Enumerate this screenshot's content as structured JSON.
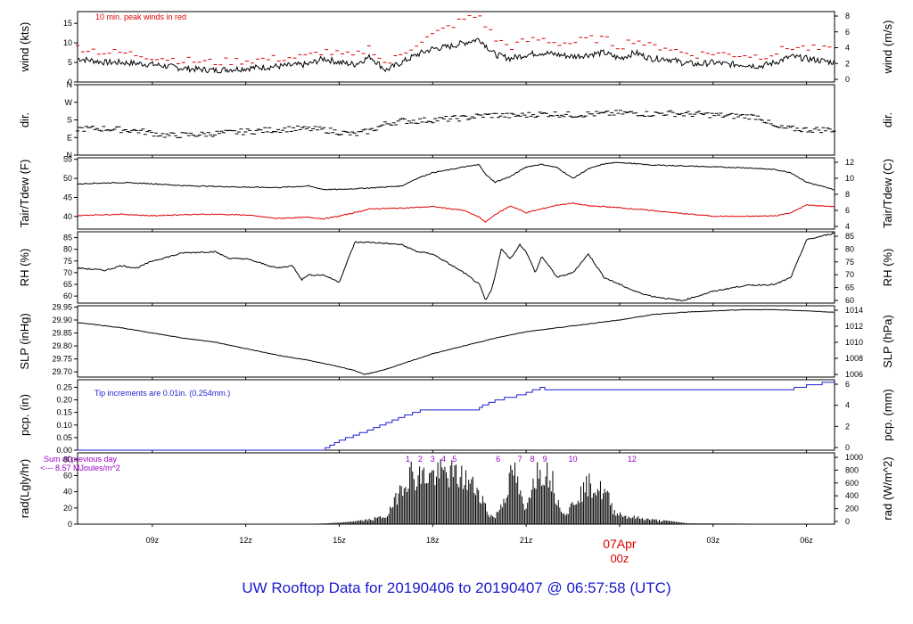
{
  "footer": {
    "title": "UW Rooftop Data for 20190406  to  20190407 @ 06:57:58  (UTC)"
  },
  "colors": {
    "axis": "#000000",
    "wind_peak": "#dd0000",
    "tdew": "#dd0000",
    "pcp": "#1f1fd0",
    "rad_hours": "#9900cc",
    "date_label": "#dd0000",
    "title": "#1a1acc"
  },
  "chart_data": [
    {
      "type": "line",
      "panel": "wind",
      "ylabel": "wind (kts)",
      "ylabel_right": "wind (m/s)",
      "ylim": [
        0,
        18
      ],
      "yticks": [
        0,
        5,
        10,
        15
      ],
      "yticks_right": [
        "0",
        "2",
        "4",
        "6",
        "8"
      ],
      "annotation": "10 min. peak winds in red",
      "series": [
        {
          "name": "wind",
          "color": "#000000",
          "style": "line",
          "x": [
            6.6,
            7.5,
            8,
            9,
            10,
            11,
            12,
            13,
            14,
            14.5,
            15,
            15.5,
            16,
            16.5,
            17,
            17.5,
            18,
            18.5,
            19,
            19.5,
            20,
            20.5,
            21,
            21.5,
            22,
            22.5,
            23,
            23.5,
            24,
            24.5,
            25,
            25.5,
            26,
            26.5,
            27,
            27.5,
            28,
            28.5,
            29,
            29.5,
            30.9
          ],
          "y": [
            6,
            5,
            5,
            4.5,
            3.5,
            3,
            3.5,
            4,
            4.5,
            6,
            5,
            4.5,
            6.5,
            3,
            5,
            7,
            8.5,
            9,
            10,
            11,
            7,
            6,
            7,
            7.5,
            7,
            6.5,
            7,
            7.5,
            6,
            7.5,
            6,
            6,
            5,
            4.5,
            5,
            4.5,
            4.5,
            4,
            5,
            6.5,
            5
          ]
        },
        {
          "name": "10 min. peak winds",
          "color": "#dd0000",
          "style": "dash",
          "x": [
            6.6,
            7.5,
            8,
            9,
            10,
            11,
            12,
            13,
            14,
            14.5,
            15,
            15.5,
            16,
            16.5,
            17,
            17.5,
            18,
            18.5,
            19,
            19.5,
            20,
            20.5,
            21,
            21.5,
            22,
            22.5,
            23,
            23.5,
            24,
            24.5,
            25,
            25.5,
            26,
            26.5,
            27,
            27.5,
            28,
            28.5,
            29,
            29.5,
            30.9
          ],
          "y": [
            9,
            7.5,
            7.5,
            6.5,
            5.5,
            5,
            5.5,
            6,
            6.5,
            8,
            7,
            6.5,
            9,
            4.5,
            7,
            10,
            12,
            14,
            16,
            17,
            11,
            9,
            10.5,
            11,
            10,
            10,
            11,
            11,
            9,
            11,
            9,
            9,
            7.5,
            7,
            7.5,
            7,
            7,
            6.5,
            7.5,
            9,
            8
          ]
        }
      ]
    },
    {
      "type": "scatter",
      "panel": "dir",
      "ylabel": "dir.",
      "ylabel_right": "dir.",
      "ylim": [
        0,
        360
      ],
      "yticks": [
        0,
        90,
        180,
        270,
        360
      ],
      "yticklabels": [
        "N",
        "E",
        "S",
        "W",
        "N"
      ],
      "series": [
        {
          "name": "dir",
          "color": "#000000",
          "x": [
            6.6,
            7.5,
            8.5,
            9.5,
            10.5,
            11.5,
            12.5,
            13.5,
            14.5,
            15.5,
            16,
            16.5,
            17,
            17.5,
            18,
            18.5,
            19,
            19.5,
            20,
            20.5,
            21,
            21.5,
            22,
            22.5,
            23,
            23.5,
            24,
            24.5,
            25,
            25.5,
            26,
            26.5,
            27,
            27.5,
            28,
            28.5,
            29,
            29.5,
            30,
            30.9
          ],
          "y": [
            135,
            135,
            125,
            100,
            105,
            115,
            125,
            135,
            130,
            105,
            125,
            160,
            175,
            175,
            180,
            185,
            190,
            200,
            205,
            200,
            205,
            210,
            210,
            205,
            210,
            210,
            215,
            215,
            210,
            215,
            210,
            210,
            205,
            200,
            200,
            195,
            140,
            135,
            130,
            130
          ]
        }
      ]
    },
    {
      "type": "line",
      "panel": "tair_tdew",
      "ylabel": "Tair/Tdew (F)",
      "ylabel_right": "Tair/Tdew (C)",
      "ylim": [
        36.7,
        55.4
      ],
      "yticks": [
        40,
        45,
        50,
        55
      ],
      "yticks_right": [
        "4",
        "6",
        "8",
        "10",
        "12"
      ],
      "series": [
        {
          "name": "Tair",
          "color": "#000000",
          "x": [
            6.6,
            7,
            8,
            9,
            10,
            11,
            12,
            13,
            14,
            14.5,
            15,
            16,
            17,
            17.5,
            18,
            18.5,
            19,
            19.5,
            19.7,
            20,
            20.5,
            21,
            21.5,
            22,
            22.5,
            23,
            23.5,
            24,
            25,
            26,
            27,
            28,
            29,
            29.5,
            30,
            30.9
          ],
          "y": [
            48.5,
            48.7,
            48.9,
            48.6,
            48.1,
            47.9,
            47.7,
            47.6,
            48.0,
            47.1,
            47.1,
            47.5,
            48.0,
            50.0,
            51.5,
            52.2,
            53.0,
            53.6,
            51.0,
            49.0,
            50.5,
            53.0,
            53.7,
            52.8,
            50.0,
            52.5,
            53.8,
            54.2,
            53.5,
            53.3,
            53.0,
            52.8,
            52.3,
            51.5,
            49.0,
            47.0
          ]
        },
        {
          "name": "Tdew",
          "color": "#dd0000",
          "x": [
            6.6,
            7,
            8,
            9,
            10,
            11,
            12,
            13,
            14,
            14.5,
            15,
            16,
            17,
            17.5,
            18,
            18.5,
            19,
            19.5,
            19.7,
            20,
            20.5,
            21,
            21.5,
            22,
            22.5,
            23,
            23.5,
            24,
            25,
            26,
            27,
            28,
            29,
            29.5,
            30,
            30.9
          ],
          "y": [
            40.2,
            40.4,
            40.6,
            40.2,
            40.5,
            40.6,
            40.4,
            39.5,
            39.8,
            39.4,
            40.1,
            42.0,
            42.2,
            42.4,
            42.6,
            42.1,
            41.6,
            39.8,
            38.5,
            40.5,
            42.8,
            41.0,
            42.0,
            43.0,
            43.5,
            42.8,
            42.6,
            42.3,
            41.6,
            40.8,
            40.1,
            40.0,
            40.2,
            41.0,
            43.0,
            42.6
          ]
        }
      ]
    },
    {
      "type": "line",
      "panel": "rh",
      "ylabel": "RH (%)",
      "ylabel_right": "RH (%)",
      "ylim": [
        57,
        87.5
      ],
      "yticks": [
        60,
        65,
        70,
        75,
        80,
        85
      ],
      "yticks_right": [
        "60",
        "65",
        "70",
        "75",
        "80",
        "85"
      ],
      "series": [
        {
          "name": "RH",
          "color": "#000000",
          "x": [
            6.6,
            7.5,
            8,
            8.5,
            9,
            10,
            11,
            11.5,
            12,
            12.5,
            13,
            13.5,
            13.8,
            14,
            14.5,
            15,
            15.5,
            16,
            17,
            17.5,
            18,
            18.5,
            19,
            19.5,
            19.7,
            19.9,
            20.2,
            20.5,
            20.8,
            21,
            21.3,
            21.5,
            22,
            22.5,
            23,
            23.5,
            24,
            24.5,
            25,
            26,
            27,
            28,
            29,
            29.5,
            30,
            30.9
          ],
          "y": [
            72,
            71,
            73,
            72,
            75,
            78.5,
            79,
            76,
            76,
            74,
            72,
            73,
            67,
            69,
            69,
            66,
            83,
            83,
            82,
            79,
            78,
            74,
            70,
            65,
            58,
            63,
            80,
            76,
            82,
            79,
            70,
            77,
            68,
            70,
            78,
            68,
            65,
            62,
            60,
            58,
            62,
            64.5,
            65,
            68,
            84,
            87
          ]
        }
      ]
    },
    {
      "type": "line",
      "panel": "slp",
      "ylabel": "SLP (inHg)",
      "ylabel_right": "SLP (hPa)",
      "ylim": [
        29.68,
        29.955
      ],
      "yticks": [
        29.7,
        29.75,
        29.8,
        29.85,
        29.9,
        29.95
      ],
      "yticklabels": [
        "29.70",
        "29.75",
        "29.80",
        "29.85",
        "29.90",
        "29.95"
      ],
      "yticks_right": [
        "1006",
        "1008",
        "1010",
        "1012",
        "1014"
      ],
      "series": [
        {
          "name": "SLP",
          "color": "#000000",
          "x": [
            6.6,
            7,
            8,
            9,
            10,
            11,
            12,
            13,
            14,
            15,
            15.5,
            15.8,
            16,
            16.5,
            17,
            18,
            19,
            20,
            21,
            22,
            23,
            24,
            25,
            26,
            27,
            28,
            29,
            30,
            30.9
          ],
          "y": [
            29.89,
            29.885,
            29.87,
            29.85,
            29.83,
            29.815,
            29.79,
            29.765,
            29.745,
            29.72,
            29.705,
            29.69,
            29.695,
            29.71,
            29.73,
            29.77,
            29.8,
            29.83,
            29.855,
            29.87,
            29.885,
            29.9,
            29.92,
            29.93,
            29.935,
            29.94,
            29.94,
            29.935,
            29.93
          ]
        }
      ]
    },
    {
      "type": "line",
      "panel": "pcp",
      "ylabel": "pcp. (in)",
      "ylabel_right": "pcp. (mm)",
      "ylim": [
        0,
        0.28
      ],
      "yticks": [
        0,
        0.05,
        0.1,
        0.15,
        0.2,
        0.25
      ],
      "yticklabels": [
        "0.00",
        "0.05",
        "0.10",
        "0.15",
        "0.20",
        "0.25"
      ],
      "yticks_right": [
        "0",
        "2",
        "4",
        "6"
      ],
      "annotation": "Tip increments are 0.01in. (0.254mm.)",
      "series": [
        {
          "name": "pcp",
          "color": "#1f1fd0",
          "style": "step",
          "x": [
            6.6,
            14.4,
            14.55,
            14.7,
            14.85,
            15.0,
            15.2,
            15.45,
            15.65,
            15.9,
            16.1,
            16.3,
            16.5,
            16.7,
            16.9,
            17.1,
            17.35,
            17.6,
            19.5,
            19.6,
            19.8,
            20.0,
            20.3,
            20.7,
            21.0,
            21.2,
            21.45,
            21.6,
            22.3,
            22.35,
            22.45,
            29.5,
            29.6,
            29.8,
            30.0,
            30.3,
            30.5,
            30.7,
            30.9
          ],
          "y": [
            0.0,
            0.0,
            0.01,
            0.02,
            0.03,
            0.04,
            0.05,
            0.06,
            0.07,
            0.08,
            0.09,
            0.1,
            0.11,
            0.12,
            0.13,
            0.14,
            0.15,
            0.16,
            0.17,
            0.18,
            0.19,
            0.2,
            0.21,
            0.22,
            0.23,
            0.24,
            0.25,
            0.24,
            0.24,
            0.24,
            0.24,
            0.24,
            0.25,
            0.25,
            0.26,
            0.26,
            0.27,
            0.27,
            0.27
          ]
        }
      ]
    },
    {
      "type": "area",
      "panel": "rad",
      "ylabel": "rad(Lgly/hr)",
      "ylabel_right": "rad (W/m^2)",
      "ylim": [
        0,
        88
      ],
      "yticks": [
        0,
        20,
        40,
        60,
        80
      ],
      "yticks_right": [
        "0",
        "200",
        "400",
        "600",
        "800",
        "1000"
      ],
      "annotation_line1": "Sum of previous day",
      "annotation_line2": "<--- 8.57 MJoules/m^2",
      "hour_labels": [
        "1",
        "2",
        "3",
        "4",
        "5",
        "6",
        "7",
        "8",
        "9",
        "10",
        "12"
      ],
      "series": [
        {
          "name": "rad",
          "color": "#000000",
          "x": [
            6.6,
            13.4,
            14.0,
            14.5,
            15.0,
            15.5,
            16.0,
            16.5,
            16.7,
            17.0,
            17.3,
            17.5,
            18.0,
            18.5,
            19.0,
            19.5,
            19.8,
            20.0,
            20.3,
            20.6,
            20.9,
            21.0,
            21.2,
            21.5,
            21.8,
            22.0,
            22.3,
            22.6,
            23.0,
            23.3,
            23.6,
            23.8,
            24.2,
            25.0,
            25.6,
            26.2,
            30.9
          ],
          "y": [
            0,
            0,
            0.3,
            0.8,
            2,
            3.5,
            7,
            12,
            25,
            60,
            78,
            72,
            75,
            78,
            70,
            50,
            15,
            10,
            40,
            85,
            28,
            20,
            70,
            85,
            75,
            35,
            15,
            40,
            60,
            55,
            45,
            20,
            12,
            7,
            4,
            1,
            0
          ]
        }
      ]
    },
    {
      "type": "axis",
      "panel": "time",
      "xlim": [
        6.6,
        30.9
      ],
      "xticks": [
        9,
        12,
        15,
        18,
        21,
        24,
        27,
        30
      ],
      "xticklabels": [
        "09z",
        "12z",
        "15z",
        "18z",
        "21z",
        "07Apr",
        "03z",
        "06z"
      ],
      "date_sublabel": "00z"
    }
  ]
}
